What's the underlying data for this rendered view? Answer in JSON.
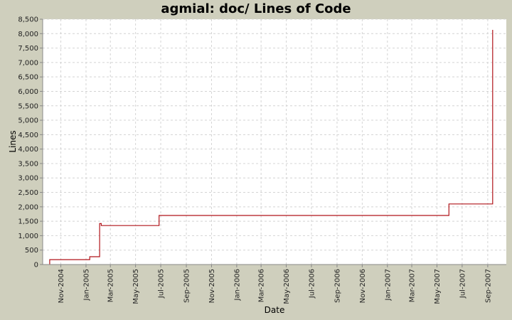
{
  "chart_data": {
    "type": "line",
    "title": "agmial: doc/ Lines of Code",
    "xlabel": "Date",
    "ylabel": "Lines",
    "ylim": [
      0,
      8500
    ],
    "xlim": [
      "2004-09-18",
      "2007-10-16"
    ],
    "grid": true,
    "line_color": "#b0141a",
    "step": true,
    "y_ticks": [
      0,
      500,
      1000,
      1500,
      2000,
      2500,
      3000,
      3500,
      4000,
      4500,
      5000,
      5500,
      6000,
      6500,
      7000,
      7500,
      8000,
      8500
    ],
    "y_tick_labels": [
      "0",
      "500",
      "1,000",
      "1,500",
      "2,000",
      "2,500",
      "3,000",
      "3,500",
      "4,000",
      "4,500",
      "5,000",
      "5,500",
      "6,000",
      "6,500",
      "7,000",
      "7,500",
      "8,000",
      "8,500"
    ],
    "x_ticks": [
      "2004-11-01",
      "2005-01-01",
      "2005-03-01",
      "2005-05-01",
      "2005-07-01",
      "2005-09-01",
      "2005-11-01",
      "2006-01-01",
      "2006-03-01",
      "2006-05-01",
      "2006-07-01",
      "2006-09-01",
      "2006-11-01",
      "2007-01-01",
      "2007-03-01",
      "2007-05-01",
      "2007-07-01",
      "2007-09-01"
    ],
    "x_tick_labels": [
      "Nov-2004",
      "Jan-2005",
      "Mar-2005",
      "May-2005",
      "Jul-2005",
      "Sep-2005",
      "Nov-2005",
      "Jan-2006",
      "Mar-2006",
      "May-2006",
      "Jul-2006",
      "Sep-2006",
      "Nov-2006",
      "Jan-2007",
      "Mar-2007",
      "May-2007",
      "Jul-2007",
      "Sep-2007"
    ],
    "series": [
      {
        "dates": [
          "2004-10-05",
          "2004-10-05",
          "2005-01-10",
          "2005-01-10",
          "2005-02-03",
          "2005-02-03",
          "2005-02-07",
          "2005-02-07",
          "2005-06-27",
          "2005-06-27",
          "2007-05-30",
          "2007-05-30",
          "2007-09-13",
          "2007-09-13"
        ],
        "values": [
          0,
          170,
          170,
          270,
          270,
          1420,
          1420,
          1350,
          1350,
          1700,
          1700,
          2100,
          2100,
          8130
        ]
      }
    ]
  }
}
